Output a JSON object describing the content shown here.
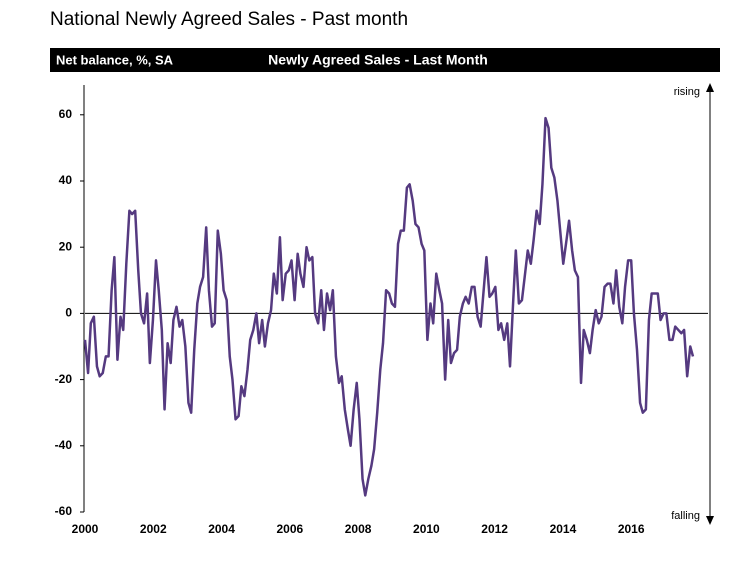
{
  "chart_data": {
    "type": "line",
    "title": "National Newly Agreed Sales - Past month",
    "y_label": "Net balance, %, SA",
    "subtitle": "Newly  Agreed Sales - Last Month",
    "annotations": [
      "rising",
      "falling"
    ],
    "color": "#553a80",
    "x": [
      2000.0,
      2000.09,
      2000.17,
      2000.26,
      2000.35,
      2000.43,
      2000.52,
      2000.61,
      2000.69,
      2000.78,
      2000.86,
      2000.95,
      2001.04,
      2001.12,
      2001.21,
      2001.3,
      2001.38,
      2001.47,
      2001.56,
      2001.64,
      2001.73,
      2001.82,
      2001.9,
      2001.99,
      2002.08,
      2002.16,
      2002.25,
      2002.33,
      2002.42,
      2002.51,
      2002.59,
      2002.68,
      2002.77,
      2002.85,
      2002.94,
      2003.03,
      2003.11,
      2003.2,
      2003.29,
      2003.37,
      2003.46,
      2003.55,
      2003.63,
      2003.72,
      2003.8,
      2003.89,
      2003.98,
      2004.06,
      2004.15,
      2004.24,
      2004.32,
      2004.41,
      2004.5,
      2004.58,
      2004.67,
      2004.76,
      2004.84,
      2004.93,
      2005.02,
      2005.1,
      2005.19,
      2005.27,
      2005.36,
      2005.45,
      2005.53,
      2005.62,
      2005.71,
      2005.79,
      2005.88,
      2005.97,
      2006.05,
      2006.14,
      2006.23,
      2006.31,
      2006.4,
      2006.49,
      2006.57,
      2006.66,
      2006.74,
      2006.83,
      2006.92,
      2007.0,
      2007.09,
      2007.18,
      2007.26,
      2007.35,
      2007.44,
      2007.52,
      2007.61,
      2007.7,
      2007.78,
      2007.87,
      2007.96,
      2008.04,
      2008.13,
      2008.21,
      2008.3,
      2008.39,
      2008.47,
      2008.56,
      2008.65,
      2008.73,
      2008.82,
      2008.91,
      2008.99,
      2009.08,
      2009.17,
      2009.25,
      2009.34,
      2009.43,
      2009.51,
      2009.6,
      2009.68,
      2009.77,
      2009.86,
      2009.94,
      2010.03,
      2010.12,
      2010.2,
      2010.29,
      2010.38,
      2010.46,
      2010.55,
      2010.64,
      2010.72,
      2010.81,
      2010.9,
      2010.98,
      2011.07,
      2011.15,
      2011.24,
      2011.33,
      2011.41,
      2011.5,
      2011.59,
      2011.67,
      2011.76,
      2011.85,
      2011.93,
      2012.02,
      2012.11,
      2012.19,
      2012.28,
      2012.37,
      2012.45,
      2012.54,
      2012.62,
      2012.71,
      2012.8,
      2012.88,
      2012.97,
      2013.06,
      2013.14,
      2013.23,
      2013.32,
      2013.4,
      2013.49,
      2013.58,
      2013.66,
      2013.75,
      2013.84,
      2013.92,
      2014.01,
      2014.09,
      2014.18,
      2014.27,
      2014.35,
      2014.44,
      2014.53,
      2014.61,
      2014.7,
      2014.79,
      2014.87,
      2014.96,
      2015.05,
      2015.13,
      2015.22,
      2015.31,
      2015.39,
      2015.48,
      2015.56,
      2015.65,
      2015.74,
      2015.82,
      2015.91,
      2016.0,
      2016.08,
      2016.17,
      2016.26,
      2016.34,
      2016.43,
      2016.52,
      2016.6,
      2016.69,
      2016.78,
      2016.86,
      2016.95,
      2017.03,
      2017.12,
      2017.21,
      2017.29,
      2017.38,
      2017.47,
      2017.55,
      2017.64,
      2017.73,
      2017.81
    ],
    "values": [
      -8,
      -18,
      -3,
      -1,
      -16,
      -19,
      -18,
      -13,
      -13,
      7,
      17,
      -14,
      -1,
      -5,
      15,
      31,
      30,
      31,
      13,
      0,
      -3,
      6,
      -15,
      -2,
      16,
      7,
      -5,
      -29,
      -9,
      -15,
      -2,
      2,
      -4,
      -2,
      -10,
      -27,
      -30,
      -11,
      3,
      8,
      11,
      26,
      7,
      -4,
      -3,
      25,
      18,
      7,
      4,
      -13,
      -20,
      -32,
      -31,
      -22,
      -25,
      -17,
      -8,
      -5,
      0,
      -9,
      -2,
      -10,
      -3,
      1,
      12,
      6,
      23,
      4,
      12,
      13,
      16,
      4,
      18,
      12,
      8,
      20,
      16,
      17,
      0,
      -3,
      7,
      -5,
      6,
      1,
      7,
      -13,
      -21,
      -19,
      -29,
      -35,
      -40,
      -29,
      -21,
      -32,
      -50,
      -55,
      -50,
      -46,
      -41,
      -30,
      -17,
      -9,
      7,
      6,
      3,
      2,
      21,
      25,
      25,
      38,
      39,
      34,
      27,
      26,
      21,
      19,
      -8,
      3,
      -3,
      12,
      7,
      3,
      -20,
      -2,
      -15,
      -12,
      -11,
      -1,
      3,
      5,
      3,
      8,
      8,
      -1,
      -4,
      6,
      17,
      5,
      6,
      8,
      -5,
      -3,
      -8,
      -3,
      -16,
      3,
      19,
      3,
      4,
      11,
      19,
      15,
      22,
      31,
      27,
      39,
      59,
      56,
      44,
      41,
      34,
      25,
      15,
      21,
      28,
      19,
      13,
      11,
      -21,
      -5,
      -8,
      -12,
      -5,
      1,
      -3,
      -1,
      8,
      9,
      9,
      3,
      13,
      2,
      -3,
      8,
      16,
      16,
      0,
      -11,
      -27,
      -30,
      -29,
      -2,
      6,
      6,
      6,
      -2,
      0,
      0,
      -8,
      -8,
      -4,
      -5,
      -6,
      -5,
      -19,
      -10,
      -13
    ],
    "xlim": [
      2000,
      2018.25
    ],
    "xticks": [
      2000,
      2002,
      2004,
      2006,
      2008,
      2010,
      2012,
      2014,
      2016
    ],
    "ylim": [
      -60,
      69
    ],
    "yticks": [
      -60,
      -40,
      -20,
      0,
      20,
      40,
      60
    ],
    "zero_line": true
  }
}
